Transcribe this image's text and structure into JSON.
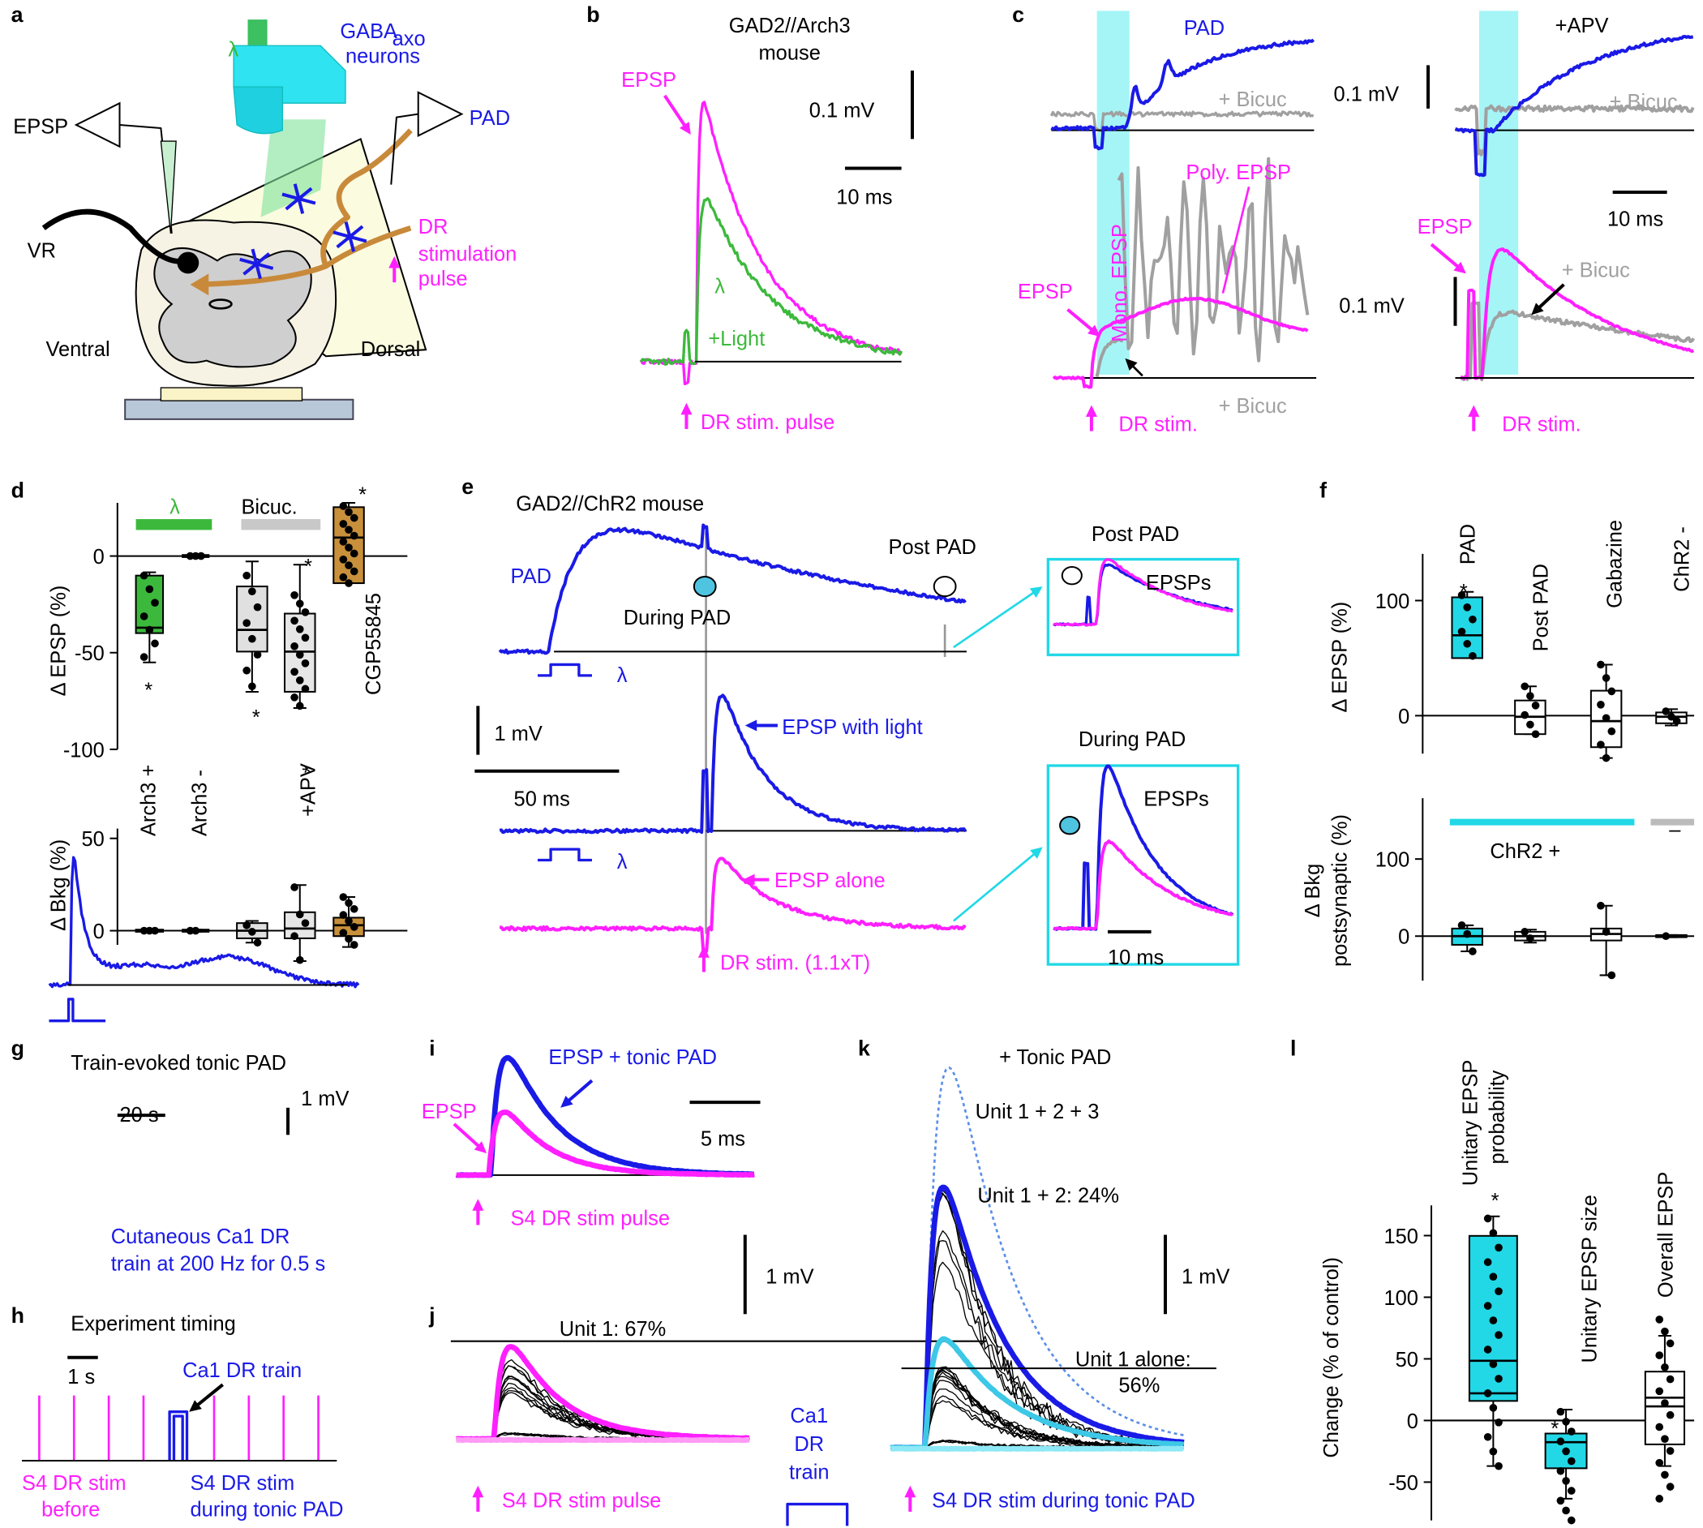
{
  "figure": {
    "a": {
      "label": "a",
      "texts": [
        "λ",
        "GABA",
        "axo",
        "neurons",
        "EPSP",
        "PAD",
        "VR",
        "DR",
        "stimulation",
        "pulse",
        "Ventral",
        "Dorsal"
      ]
    },
    "b": {
      "label": "b",
      "texts": [
        "GAD2//Arch3",
        "mouse",
        "EPSP",
        "0.1 mV",
        "10 ms",
        "λ",
        "+Light",
        "DR stim. pulse"
      ]
    },
    "c": {
      "label": "c",
      "texts": [
        "PAD",
        "+ Bicuc",
        "+APV",
        "0.1 mV",
        "+ Bicuc",
        "Poly. EPSP",
        "Mono. EPSP",
        "EPSP",
        "+ Bicuc",
        "DR stim.",
        "0.1 mV",
        "10 ms",
        "EPSP",
        "+ Bicuc",
        "DR stim."
      ]
    },
    "d": {
      "label": "d",
      "texts": [
        "λ",
        "Bicuc.",
        "CGP55845",
        "Δ EPSP (%)",
        "Arch3 +",
        "Arch3 -",
        "+APV",
        "Δ Bkg (%)",
        "*",
        "*",
        "*",
        "*",
        "*"
      ],
      "epsp_ticks": [
        0,
        -50,
        -100
      ],
      "bkg_ticks": [
        50,
        0
      ]
    },
    "e": {
      "label": "e",
      "texts": [
        "GAD2//ChR2 mouse",
        "PAD",
        "During PAD",
        "Post PAD",
        "λ",
        "1 mV",
        "50 ms",
        "EPSP with light",
        "λ",
        "EPSP alone",
        "DR stim. (1.1xT)",
        "Post PAD",
        "EPSPs",
        "During PAD",
        "EPSPs",
        "10 ms"
      ]
    },
    "f": {
      "label": "f",
      "texts": [
        "PAD",
        "Post PAD",
        "Gabazine",
        "ChR2 -",
        "Δ EPSP (%)",
        "ChR2 +",
        "–",
        "Δ Bkg",
        "postsynaptic (%)",
        "*"
      ],
      "epsp_ticks": [
        100,
        0
      ],
      "bkg_ticks": [
        100,
        0
      ]
    },
    "g": {
      "label": "g",
      "texts": [
        "Train-evoked tonic PAD",
        "20 s",
        "1 mV",
        "Cutaneous Ca1 DR",
        "train at 200 Hz for 0.5 s"
      ]
    },
    "h": {
      "label": "h",
      "texts": [
        "Experiment timing",
        "1 s",
        "Ca1 DR train",
        "S4 DR stim",
        "before",
        "S4 DR stim",
        "during tonic PAD"
      ]
    },
    "i": {
      "label": "i",
      "texts": [
        "EPSP + tonic PAD",
        "EPSP",
        "5 ms",
        "S4 DR stim pulse"
      ]
    },
    "j": {
      "label": "j",
      "texts": [
        "Unit 1:  67%",
        "1 mV",
        "S4 DR stim pulse",
        "Ca1",
        "DR",
        "train"
      ]
    },
    "k": {
      "label": "k",
      "texts": [
        "+ Tonic PAD",
        "Unit 1 + 2 + 3",
        "Unit 1 + 2:  24%",
        "1 mV",
        "Unit 1 alone:",
        "56%",
        "S4 DR stim during tonic PAD"
      ]
    },
    "l": {
      "label": "l",
      "texts": [
        "Unitary EPSP",
        "probability",
        "*",
        "Unitary EPSP size",
        "*",
        "Overall EPSP",
        "Change (% of control)"
      ],
      "ticks": [
        150,
        100,
        50,
        0,
        -50
      ]
    }
  }
}
